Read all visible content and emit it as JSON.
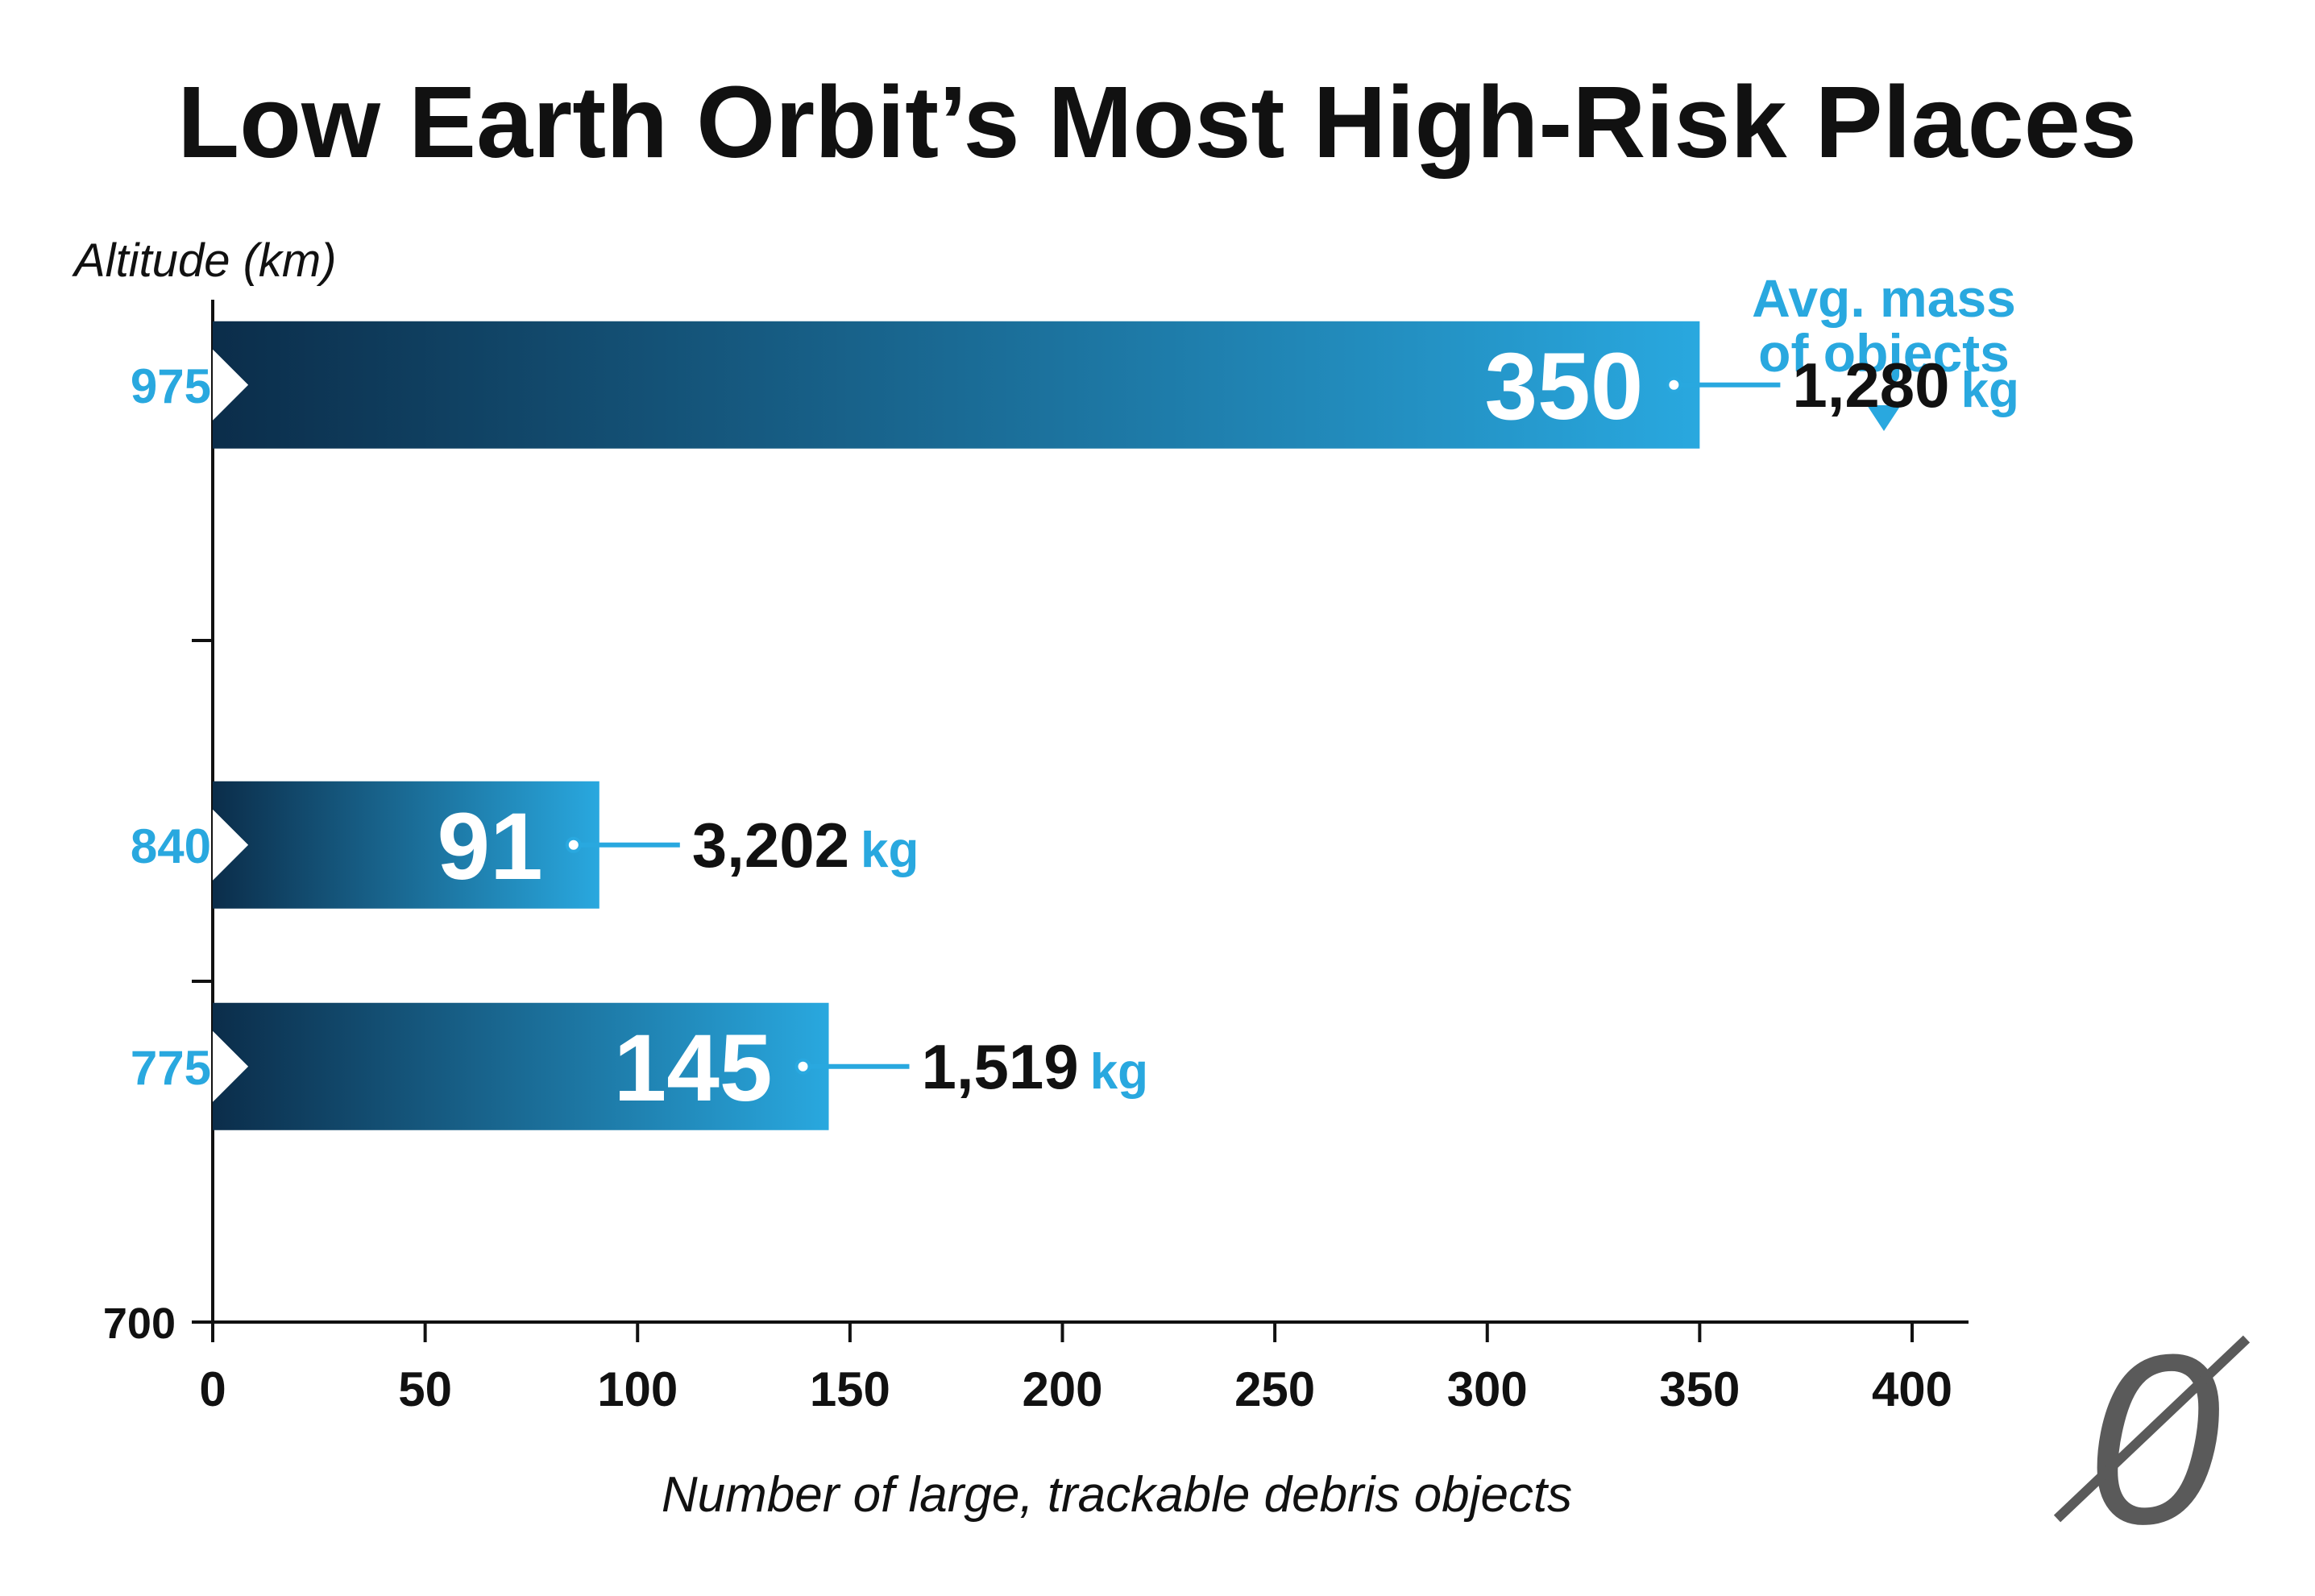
{
  "colors": {
    "accent": "#29a8df",
    "bar_dark": "#0b2d4a",
    "text": "#111111",
    "logo": "#5a5a5a"
  },
  "logo": {
    "icon": "slashed-zero-logo"
  },
  "chart_data": {
    "type": "bar",
    "orientation": "horizontal",
    "title": "Low Earth Orbit’s Most High-Risk Places",
    "xlabel": "Number of large, trackable debris objects",
    "ylabel": "Altitude (km)",
    "xlim": [
      0,
      400
    ],
    "xticks": [
      0,
      50,
      100,
      150,
      200,
      250,
      300,
      350,
      400
    ],
    "ylim": [
      700,
      1000
    ],
    "ytick_label": "700",
    "categories": [
      "975",
      "840",
      "775"
    ],
    "values": [
      350,
      91,
      145
    ],
    "mass_header": "Avg. mass\nof objects",
    "mass_values": [
      "1,280",
      "3,202",
      "1,519"
    ],
    "mass_unit": "kg",
    "grid": false,
    "legend": "none"
  }
}
